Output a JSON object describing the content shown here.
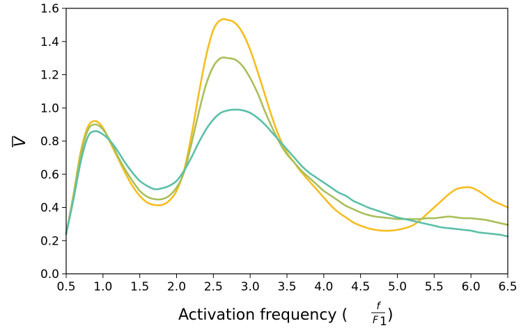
{
  "chart_data": {
    "type": "line",
    "xlabel": "Activation frequency (f/F1)",
    "xlabel_parts": {
      "prefix": "Activation frequency (",
      "numerator": "f",
      "denominator": "F",
      "denominator_sub": "1",
      "suffix": ")"
    },
    "ylabel": "V",
    "ylabel_overline": true,
    "xlim": [
      0.5,
      6.5
    ],
    "ylim": [
      0.0,
      1.6
    ],
    "xticks": [
      "0.5",
      "1.0",
      "1.5",
      "2.0",
      "2.5",
      "3.0",
      "3.5",
      "4.0",
      "4.5",
      "5.0",
      "5.5",
      "6.0",
      "6.5"
    ],
    "yticks": [
      "0.0",
      "0.2",
      "0.4",
      "0.6",
      "0.8",
      "1.0",
      "1.2",
      "1.4",
      "1.6"
    ],
    "grid": false,
    "legend": "none",
    "series": [
      {
        "color": "#f5bd1f",
        "x": [
          0.5,
          0.6,
          0.7,
          0.8,
          0.9,
          1.0,
          1.1,
          1.2,
          1.3,
          1.4,
          1.5,
          1.6,
          1.7,
          1.8,
          1.9,
          2.0,
          2.1,
          2.2,
          2.3,
          2.4,
          2.5,
          2.6,
          2.7,
          2.8,
          2.9,
          3.0,
          3.1,
          3.2,
          3.3,
          3.4,
          3.5,
          3.6,
          3.7,
          3.8,
          3.9,
          4.0,
          4.1,
          4.2,
          4.3,
          4.4,
          4.5,
          4.6,
          4.7,
          4.8,
          4.9,
          5.0,
          5.1,
          5.2,
          5.3,
          5.4,
          5.5,
          5.6,
          5.7,
          5.8,
          5.9,
          6.0,
          6.1,
          6.2,
          6.3,
          6.4,
          6.5
        ],
        "values": [
          0.24,
          0.48,
          0.74,
          0.89,
          0.92,
          0.88,
          0.79,
          0.7,
          0.61,
          0.53,
          0.47,
          0.43,
          0.415,
          0.415,
          0.44,
          0.5,
          0.62,
          0.83,
          1.08,
          1.31,
          1.47,
          1.53,
          1.53,
          1.51,
          1.45,
          1.35,
          1.22,
          1.08,
          0.94,
          0.82,
          0.73,
          0.67,
          0.61,
          0.56,
          0.51,
          0.46,
          0.41,
          0.37,
          0.34,
          0.31,
          0.29,
          0.275,
          0.265,
          0.26,
          0.26,
          0.265,
          0.275,
          0.29,
          0.32,
          0.36,
          0.4,
          0.44,
          0.48,
          0.51,
          0.52,
          0.52,
          0.5,
          0.47,
          0.44,
          0.42,
          0.4
        ]
      },
      {
        "color": "#a8bf5a",
        "x": [
          0.5,
          0.6,
          0.7,
          0.8,
          0.9,
          1.0,
          1.1,
          1.2,
          1.3,
          1.4,
          1.5,
          1.6,
          1.7,
          1.8,
          1.9,
          2.0,
          2.1,
          2.2,
          2.3,
          2.4,
          2.5,
          2.6,
          2.7,
          2.8,
          2.9,
          3.0,
          3.1,
          3.2,
          3.3,
          3.4,
          3.5,
          3.6,
          3.7,
          3.8,
          3.9,
          4.0,
          4.1,
          4.2,
          4.3,
          4.4,
          4.5,
          4.6,
          4.7,
          4.8,
          4.9,
          5.0,
          5.1,
          5.2,
          5.3,
          5.4,
          5.5,
          5.6,
          5.7,
          5.8,
          5.9,
          6.0,
          6.1,
          6.2,
          6.3,
          6.4,
          6.5
        ],
        "values": [
          0.24,
          0.47,
          0.72,
          0.87,
          0.9,
          0.87,
          0.8,
          0.71,
          0.63,
          0.56,
          0.5,
          0.465,
          0.45,
          0.45,
          0.47,
          0.52,
          0.61,
          0.78,
          0.97,
          1.14,
          1.25,
          1.3,
          1.3,
          1.29,
          1.25,
          1.18,
          1.09,
          0.98,
          0.88,
          0.79,
          0.72,
          0.67,
          0.62,
          0.58,
          0.54,
          0.5,
          0.47,
          0.44,
          0.41,
          0.39,
          0.37,
          0.355,
          0.345,
          0.34,
          0.335,
          0.33,
          0.33,
          0.33,
          0.33,
          0.335,
          0.335,
          0.34,
          0.345,
          0.34,
          0.335,
          0.335,
          0.33,
          0.325,
          0.315,
          0.305,
          0.295
        ]
      },
      {
        "color": "#5bbfa8",
        "x": [
          0.5,
          0.6,
          0.7,
          0.8,
          0.9,
          1.0,
          1.1,
          1.2,
          1.3,
          1.4,
          1.5,
          1.6,
          1.7,
          1.8,
          1.9,
          2.0,
          2.1,
          2.2,
          2.3,
          2.4,
          2.5,
          2.6,
          2.7,
          2.8,
          2.9,
          3.0,
          3.1,
          3.2,
          3.3,
          3.4,
          3.5,
          3.6,
          3.7,
          3.8,
          3.9,
          4.0,
          4.1,
          4.2,
          4.3,
          4.4,
          4.5,
          4.6,
          4.7,
          4.8,
          4.9,
          5.0,
          5.1,
          5.2,
          5.3,
          5.4,
          5.5,
          5.6,
          5.7,
          5.8,
          5.9,
          6.0,
          6.1,
          6.2,
          6.3,
          6.4,
          6.5
        ],
        "values": [
          0.24,
          0.45,
          0.68,
          0.83,
          0.86,
          0.84,
          0.8,
          0.74,
          0.67,
          0.61,
          0.56,
          0.53,
          0.51,
          0.515,
          0.53,
          0.56,
          0.62,
          0.7,
          0.79,
          0.87,
          0.93,
          0.97,
          0.985,
          0.99,
          0.985,
          0.97,
          0.94,
          0.9,
          0.85,
          0.8,
          0.75,
          0.7,
          0.65,
          0.61,
          0.58,
          0.55,
          0.52,
          0.49,
          0.47,
          0.44,
          0.42,
          0.4,
          0.385,
          0.37,
          0.355,
          0.34,
          0.33,
          0.32,
          0.31,
          0.3,
          0.29,
          0.28,
          0.275,
          0.27,
          0.265,
          0.26,
          0.25,
          0.245,
          0.24,
          0.235,
          0.225
        ]
      }
    ]
  }
}
